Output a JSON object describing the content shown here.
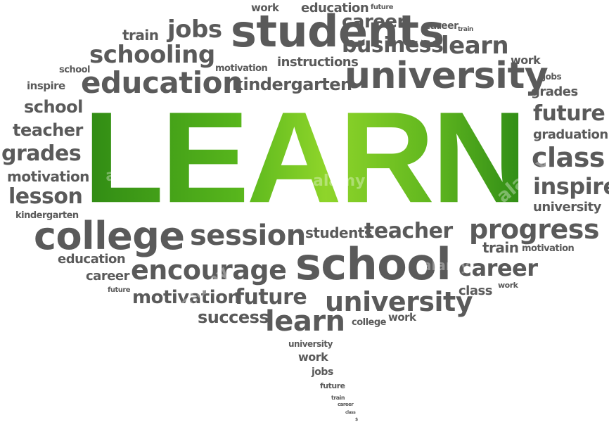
{
  "hero": {
    "text": "LEARN",
    "gradient": [
      "#2f8a14",
      "#8fd52a"
    ]
  },
  "colors": {
    "word": "#5a5a5a",
    "background": "#ffffff"
  },
  "watermark": "alamy",
  "words": [
    "work",
    "education",
    "future",
    "career",
    "train",
    "jobs",
    "students",
    "career",
    "train",
    "schooling",
    "business",
    "learn",
    "work",
    "school",
    "motivation",
    "instructions",
    "university",
    "jobs",
    "inspire",
    "education",
    "kindergarten",
    "grades",
    "school",
    "future",
    "teacher",
    "graduation",
    "grades",
    "class",
    "motivation",
    "inspire",
    "lesson",
    "university",
    "kindergarten",
    "college",
    "session",
    "students",
    "teacher",
    "progress",
    "train",
    "motivation",
    "education",
    "school",
    "career",
    "career",
    "encourage",
    "future",
    "work",
    "class",
    "motivation",
    "future",
    "university",
    "success",
    "learn",
    "college",
    "work",
    "university",
    "work",
    "jobs",
    "future",
    "train",
    "career",
    "class",
    "$"
  ]
}
